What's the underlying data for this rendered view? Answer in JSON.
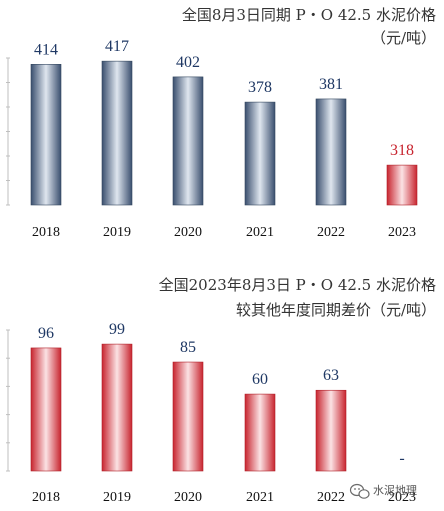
{
  "chart_data": [
    {
      "type": "bar",
      "title_lines": [
        "全国8月3日同期 P・O 42.5 水泥价格",
        "（元/吨）"
      ],
      "categories": [
        "2018",
        "2019",
        "2020",
        "2021",
        "2022",
        "2023"
      ],
      "values": [
        414,
        417,
        402,
        378,
        381,
        318
      ],
      "value_labels": [
        "414",
        "417",
        "402",
        "378",
        "381",
        "318"
      ],
      "highlight_index": 5,
      "ylim": [
        280,
        420
      ],
      "xlabel": "",
      "ylabel": "",
      "grid": false,
      "colors": {
        "normal_dark": "#3a4f6e",
        "normal_light": "#dfe6ef",
        "highlight_dark": "#c8252f",
        "highlight_light": "#fbe2e4"
      }
    },
    {
      "type": "bar",
      "title_lines": [
        "全国2023年8月3日 P・O 42.5 水泥价格",
        "较其他年度同期差价（元/吨）"
      ],
      "categories": [
        "2018",
        "2019",
        "2020",
        "2021",
        "2022",
        "2023"
      ],
      "values": [
        96,
        99,
        85,
        60,
        63,
        null
      ],
      "value_labels": [
        "96",
        "99",
        "85",
        "60",
        "63",
        "-"
      ],
      "ylim": [
        0,
        110
      ],
      "xlabel": "",
      "ylabel": "",
      "grid": false,
      "colors": {
        "normal_dark": "#c8252f",
        "normal_light": "#fbe2e4"
      }
    }
  ],
  "watermark": {
    "text": "水泥地理",
    "icon": "wechat-icon"
  }
}
